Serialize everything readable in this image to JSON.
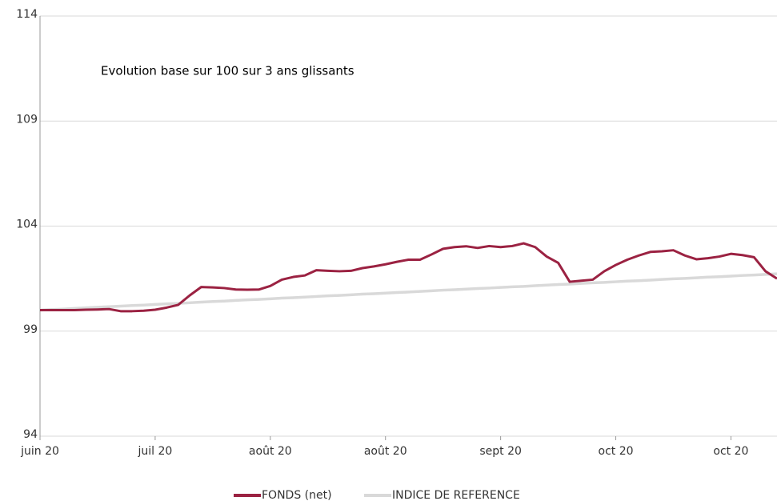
{
  "chart_data": {
    "type": "line",
    "title": "Evolution base sur 100 sur 3 ans glissants",
    "categories": [
      "juin 20",
      null,
      null,
      null,
      null,
      null,
      null,
      null,
      null,
      null,
      "juil 20",
      null,
      null,
      null,
      null,
      null,
      null,
      null,
      null,
      null,
      "août 20",
      null,
      null,
      null,
      null,
      null,
      null,
      null,
      null,
      null,
      "août 20",
      null,
      null,
      null,
      null,
      null,
      null,
      null,
      null,
      null,
      "sept 20",
      null,
      null,
      null,
      null,
      null,
      null,
      null,
      null,
      null,
      "oct 20",
      null,
      null,
      null,
      null,
      null,
      null,
      null,
      null,
      null,
      "oct 20",
      null,
      null,
      null,
      null
    ],
    "series": [
      {
        "name": "INDICE DE REFERENCE",
        "color": "#d9d9d9",
        "values": [
          100,
          100.03,
          100.05,
          100.08,
          100.11,
          100.14,
          100.16,
          100.19,
          100.22,
          100.24,
          100.27,
          100.3,
          100.32,
          100.35,
          100.38,
          100.41,
          100.43,
          100.46,
          100.49,
          100.51,
          100.54,
          100.57,
          100.59,
          100.62,
          100.65,
          100.68,
          100.7,
          100.73,
          100.76,
          100.78,
          100.81,
          100.84,
          100.86,
          100.89,
          100.92,
          100.95,
          100.97,
          101,
          101.03,
          101.05,
          101.08,
          101.11,
          101.13,
          101.16,
          101.19,
          101.22,
          101.24,
          101.27,
          101.3,
          101.32,
          101.35,
          101.38,
          101.4,
          101.43,
          101.46,
          101.49,
          101.51,
          101.54,
          101.57,
          101.59,
          101.62,
          101.65,
          101.67,
          101.7,
          101.73
        ]
      },
      {
        "name": "FONDS (net)",
        "color": "#9b2242",
        "values": [
          100,
          100,
          100,
          100,
          100.02,
          100.03,
          100.05,
          99.95,
          99.95,
          99.97,
          100.02,
          100.12,
          100.25,
          100.7,
          101.1,
          101.08,
          101.05,
          100.98,
          100.97,
          100.98,
          101.15,
          101.45,
          101.58,
          101.65,
          101.9,
          101.87,
          101.85,
          101.87,
          102,
          102.08,
          102.18,
          102.3,
          102.4,
          102.4,
          102.65,
          102.92,
          103,
          103.04,
          102.96,
          103.05,
          103,
          103.05,
          103.18,
          103,
          102.55,
          102.25,
          101.35,
          101.4,
          101.45,
          101.85,
          102.15,
          102.4,
          102.6,
          102.77,
          102.8,
          102.85,
          102.6,
          102.42,
          102.47,
          102.55,
          102.68,
          102.62,
          102.52,
          101.85,
          101.5
        ]
      }
    ],
    "ylim": [
      94,
      114
    ],
    "yticks": [
      94,
      99,
      104,
      109,
      114
    ],
    "grid": true
  }
}
